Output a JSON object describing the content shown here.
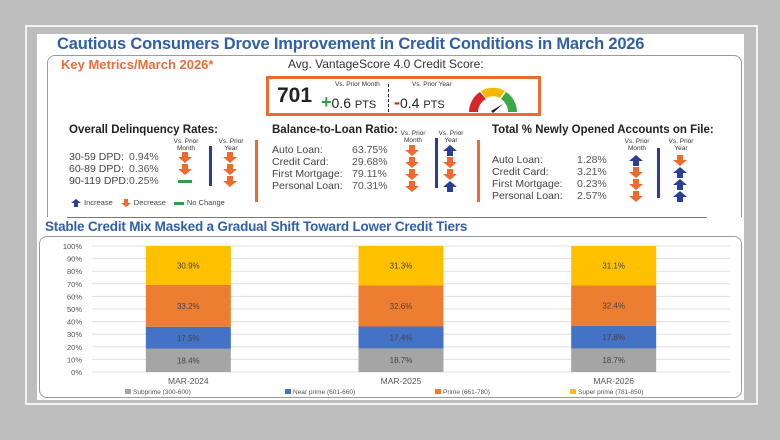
{
  "title": "Cautious Consumers Drove Improvement in Credit Conditions in March 2026",
  "key_metrics_label": "Key Metrics/March 2026*",
  "score": {
    "label": "Avg. VantageScore 4.0 Credit Score:",
    "value": "701",
    "prior_month_caption": "Vs. Prior Month",
    "prior_month_sign": "+",
    "prior_month_value": "0.6",
    "prior_year_caption": "Vs. Prior Year",
    "prior_year_sign": "-",
    "prior_year_value": "0.4",
    "unit": "PTS",
    "gauge_icon": "speedometer-gauge-icon"
  },
  "column_headers": {
    "month": "Vs. Prior Month",
    "month_l1": "Vs. Prior",
    "month_l2": "Month",
    "year_l1": "Vs. Prior",
    "year_l2": "Year"
  },
  "delinquency": {
    "title": "Overall Delinquency Rates:",
    "rows": [
      {
        "label": "30-59 DPD:",
        "value": "0.94%",
        "month": "decrease",
        "year": "decrease"
      },
      {
        "label": "60-89 DPD:",
        "value": "0.36%",
        "month": "decrease",
        "year": "decrease"
      },
      {
        "label": "90-119 DPD:",
        "value": "0.25%",
        "month": "no-change",
        "year": "decrease"
      }
    ]
  },
  "balance_to_loan": {
    "title": "Balance-to-Loan Ratio:",
    "rows": [
      {
        "label": "Auto Loan:",
        "value": "63.75%",
        "month": "decrease",
        "year": "increase"
      },
      {
        "label": "Credit Card:",
        "value": "29.68%",
        "month": "decrease",
        "year": "decrease"
      },
      {
        "label": "First Mortgage:",
        "value": "79.11%",
        "month": "decrease",
        "year": "decrease"
      },
      {
        "label": "Personal Loan:",
        "value": "70.31%",
        "month": "decrease",
        "year": "increase"
      }
    ]
  },
  "new_accounts": {
    "title": "Total % Newly Opened Accounts on File:",
    "rows": [
      {
        "label": "Auto Loan:",
        "value": "1.28%",
        "month": "increase",
        "year": "decrease"
      },
      {
        "label": "Credit Card:",
        "value": "3.21%",
        "month": "decrease",
        "year": "increase"
      },
      {
        "label": "First Mortgage:",
        "value": "0.23%",
        "month": "decrease",
        "year": "increase"
      },
      {
        "label": "Personal Loan:",
        "value": "2.57%",
        "month": "decrease",
        "year": "increase"
      }
    ]
  },
  "indicator_legend": {
    "increase": "Increase",
    "decrease": "Decrease",
    "no_change": "No Change"
  },
  "colors": {
    "increase": "#2c3e94",
    "decrease": "#ef6a2e",
    "no_change": "#2ea043",
    "title_blue": "#2f5fa8",
    "accent_orange": "#f26b3a"
  },
  "chart_title": "Stable Credit Mix Masked a Gradual Shift Toward Lower Credit Tiers",
  "chart_data": {
    "type": "bar",
    "stacked": true,
    "title": "Stable Credit Mix Masked a Gradual Shift Toward Lower Credit Tiers",
    "xlabel": "",
    "ylabel": "",
    "ylim": [
      0,
      100
    ],
    "y_ticks": [
      "0%",
      "10%",
      "20%",
      "30%",
      "40%",
      "50%",
      "60%",
      "70%",
      "80%",
      "90%",
      "100%"
    ],
    "grid": true,
    "legend_position": "bottom",
    "categories": [
      "MAR-2024",
      "MAR-2025",
      "MAR-2026"
    ],
    "series": [
      {
        "name": "Subprime (300-600)",
        "color": "#a5a5a5",
        "values": [
          18.4,
          18.7,
          18.7
        ],
        "labels": [
          "18.4%",
          "18.7%",
          "18.7%"
        ]
      },
      {
        "name": "Near prime (601-660)",
        "color": "#4472c4",
        "values": [
          17.5,
          17.4,
          17.8
        ],
        "labels": [
          "17.5%",
          "17.4%",
          "17.8%"
        ]
      },
      {
        "name": "Prime (661-780)",
        "color": "#ed7d31",
        "values": [
          33.2,
          32.6,
          32.4
        ],
        "labels": [
          "33.2%",
          "32.6%",
          "32.4%"
        ]
      },
      {
        "name": "Super prime (781-850)",
        "color": "#ffc000",
        "values": [
          30.9,
          31.3,
          31.1
        ],
        "labels": [
          "30.9%",
          "31.3%",
          "31.1%"
        ]
      }
    ]
  }
}
